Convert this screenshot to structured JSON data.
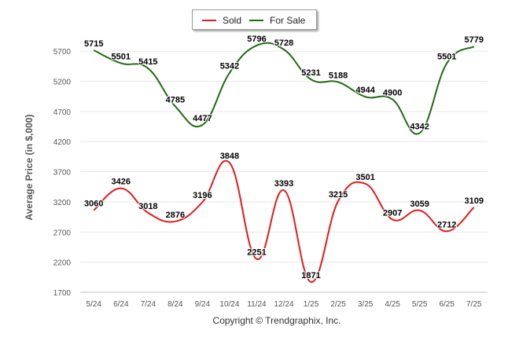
{
  "chart_data": {
    "type": "line",
    "categories": [
      "5/24",
      "6/24",
      "7/24",
      "8/24",
      "9/24",
      "10/24",
      "11/24",
      "12/24",
      "1/25",
      "2/25",
      "3/25",
      "4/25",
      "5/25",
      "6/25",
      "7/25"
    ],
    "series": [
      {
        "name": "Sold",
        "color": "#e41a1c",
        "values": [
          3060,
          3426,
          3018,
          2876,
          3196,
          3848,
          2251,
          3393,
          1871,
          3215,
          3501,
          2907,
          3059,
          2712,
          3109
        ]
      },
      {
        "name": "For Sale",
        "color": "#1f6b12",
        "values": [
          5715,
          5501,
          5415,
          4785,
          4477,
          5342,
          5796,
          5728,
          5231,
          5188,
          4944,
          4900,
          4342,
          5501,
          5779
        ]
      }
    ],
    "ylabel": "Average Price (in $,000)",
    "ylim": [
      1700,
      5950
    ],
    "yticks": [
      1700,
      2200,
      2700,
      3200,
      3700,
      4200,
      4700,
      5200,
      5700
    ],
    "grid": "horizontal",
    "legend_position": "top-center",
    "footer": "Copyright © Trendgraphix, Inc."
  }
}
